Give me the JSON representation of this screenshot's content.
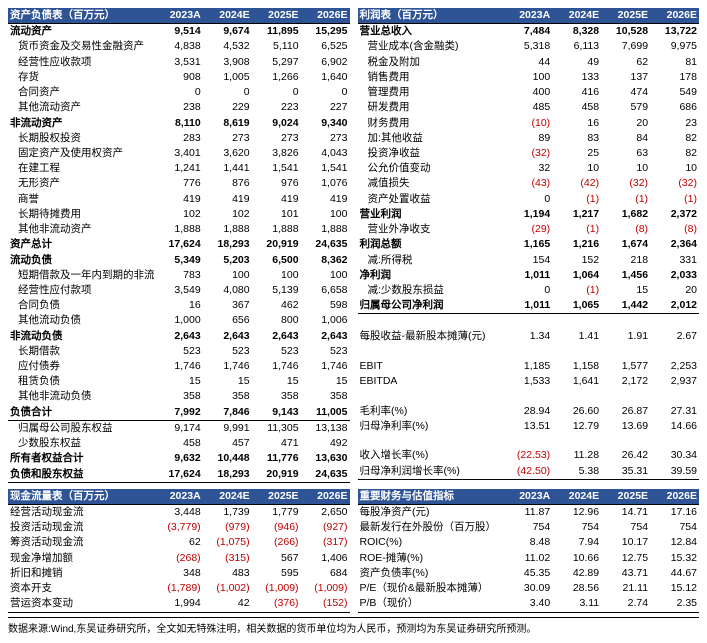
{
  "headers": [
    "2023A",
    "2024E",
    "2025E",
    "2026E"
  ],
  "balance": {
    "title": "资产负债表（百万元）",
    "rows": [
      {
        "l": "流动资产",
        "v": [
          "9,514",
          "9,674",
          "11,895",
          "15,295"
        ],
        "b": true
      },
      {
        "l": "货币资金及交易性金融资产",
        "v": [
          "4,838",
          "4,532",
          "5,110",
          "6,525"
        ],
        "i": true
      },
      {
        "l": "经营性应收款项",
        "v": [
          "3,531",
          "3,908",
          "5,297",
          "6,902"
        ],
        "i": true
      },
      {
        "l": "存货",
        "v": [
          "908",
          "1,005",
          "1,266",
          "1,640"
        ],
        "i": true
      },
      {
        "l": "合同资产",
        "v": [
          "0",
          "0",
          "0",
          "0"
        ],
        "i": true
      },
      {
        "l": "其他流动资产",
        "v": [
          "238",
          "229",
          "223",
          "227"
        ],
        "i": true
      },
      {
        "l": "非流动资产",
        "v": [
          "8,110",
          "8,619",
          "9,024",
          "9,340"
        ],
        "b": true
      },
      {
        "l": "长期股权投资",
        "v": [
          "283",
          "273",
          "273",
          "273"
        ],
        "i": true
      },
      {
        "l": "固定资产及使用权资产",
        "v": [
          "3,401",
          "3,620",
          "3,826",
          "4,043"
        ],
        "i": true
      },
      {
        "l": "在建工程",
        "v": [
          "1,241",
          "1,441",
          "1,541",
          "1,541"
        ],
        "i": true
      },
      {
        "l": "无形资产",
        "v": [
          "776",
          "876",
          "976",
          "1,076"
        ],
        "i": true
      },
      {
        "l": "商誉",
        "v": [
          "419",
          "419",
          "419",
          "419"
        ],
        "i": true
      },
      {
        "l": "长期待摊费用",
        "v": [
          "102",
          "102",
          "101",
          "100"
        ],
        "i": true
      },
      {
        "l": "其他非流动资产",
        "v": [
          "1,888",
          "1,888",
          "1,888",
          "1,888"
        ],
        "i": true
      },
      {
        "l": "资产总计",
        "v": [
          "17,624",
          "18,293",
          "20,919",
          "24,635"
        ],
        "b": true
      },
      {
        "l": "流动负债",
        "v": [
          "5,349",
          "5,203",
          "6,500",
          "8,362"
        ],
        "b": true
      },
      {
        "l": "短期借款及一年内到期的非流动负债",
        "v": [
          "783",
          "100",
          "100",
          "100"
        ],
        "i": true
      },
      {
        "l": "经营性应付款项",
        "v": [
          "3,549",
          "4,080",
          "5,139",
          "6,658"
        ],
        "i": true
      },
      {
        "l": "合同负债",
        "v": [
          "16",
          "367",
          "462",
          "598"
        ],
        "i": true
      },
      {
        "l": "其他流动负债",
        "v": [
          "1,000",
          "656",
          "800",
          "1,006"
        ],
        "i": true
      },
      {
        "l": "非流动负债",
        "v": [
          "2,643",
          "2,643",
          "2,643",
          "2,643"
        ],
        "b": true
      },
      {
        "l": "长期借款",
        "v": [
          "523",
          "523",
          "523",
          "523"
        ],
        "i": true
      },
      {
        "l": "应付债券",
        "v": [
          "1,746",
          "1,746",
          "1,746",
          "1,746"
        ],
        "i": true
      },
      {
        "l": "租赁负债",
        "v": [
          "15",
          "15",
          "15",
          "15"
        ],
        "i": true
      },
      {
        "l": "其他非流动负债",
        "v": [
          "358",
          "358",
          "358",
          "358"
        ],
        "i": true
      },
      {
        "l": "负债合计",
        "v": [
          "7,992",
          "7,846",
          "9,143",
          "11,005"
        ],
        "b": true,
        "div": true
      },
      {
        "l": "归属母公司股东权益",
        "v": [
          "9,174",
          "9,991",
          "11,305",
          "13,138"
        ],
        "i": true
      },
      {
        "l": "少数股东权益",
        "v": [
          "458",
          "457",
          "471",
          "492"
        ],
        "i": true
      },
      {
        "l": "所有者权益合计",
        "v": [
          "9,632",
          "10,448",
          "11,776",
          "13,630"
        ],
        "b": true
      },
      {
        "l": "负债和股东权益",
        "v": [
          "17,624",
          "18,293",
          "20,919",
          "24,635"
        ],
        "b": true
      }
    ]
  },
  "income": {
    "title": "利润表（百万元）",
    "rows": [
      {
        "l": "营业总收入",
        "v": [
          "7,484",
          "8,328",
          "10,528",
          "13,722"
        ],
        "b": true
      },
      {
        "l": "营业成本(含金融类)",
        "v": [
          "5,318",
          "6,113",
          "7,699",
          "9,975"
        ],
        "i": true
      },
      {
        "l": "税金及附加",
        "v": [
          "44",
          "49",
          "62",
          "81"
        ],
        "i": true
      },
      {
        "l": "销售费用",
        "v": [
          "100",
          "133",
          "137",
          "178"
        ],
        "i": true
      },
      {
        "l": "管理费用",
        "v": [
          "400",
          "416",
          "474",
          "549"
        ],
        "i": true
      },
      {
        "l": "研发费用",
        "v": [
          "485",
          "458",
          "579",
          "686"
        ],
        "i": true
      },
      {
        "l": "财务费用",
        "v": [
          "(10)",
          "16",
          "20",
          "23"
        ],
        "i": true,
        "negIdx": [
          0
        ]
      },
      {
        "l": "加:其他收益",
        "v": [
          "89",
          "83",
          "84",
          "82"
        ],
        "i": true
      },
      {
        "l": "投资净收益",
        "v": [
          "(32)",
          "25",
          "63",
          "82"
        ],
        "i": true,
        "negIdx": [
          0
        ]
      },
      {
        "l": "公允价值变动",
        "v": [
          "32",
          "10",
          "10",
          "10"
        ],
        "i": true
      },
      {
        "l": "减值损失",
        "v": [
          "(43)",
          "(42)",
          "(32)",
          "(32)"
        ],
        "i": true,
        "negIdx": [
          0,
          1,
          2,
          3
        ]
      },
      {
        "l": "资产处置收益",
        "v": [
          "0",
          "(1)",
          "(1)",
          "(1)"
        ],
        "i": true,
        "negIdx": [
          1,
          2,
          3
        ]
      },
      {
        "l": "营业利润",
        "v": [
          "1,194",
          "1,217",
          "1,682",
          "2,372"
        ],
        "b": true
      },
      {
        "l": "营业外净收支",
        "v": [
          "(29)",
          "(1)",
          "(8)",
          "(8)"
        ],
        "i": true,
        "negIdx": [
          0,
          1,
          2,
          3
        ]
      },
      {
        "l": "利润总额",
        "v": [
          "1,165",
          "1,216",
          "1,674",
          "2,364"
        ],
        "b": true
      },
      {
        "l": "减:所得税",
        "v": [
          "154",
          "152",
          "218",
          "331"
        ],
        "i": true
      },
      {
        "l": "净利润",
        "v": [
          "1,011",
          "1,064",
          "1,456",
          "2,033"
        ],
        "b": true
      },
      {
        "l": "减:少数股东损益",
        "v": [
          "0",
          "(1)",
          "15",
          "20"
        ],
        "i": true,
        "negIdx": [
          1
        ]
      },
      {
        "l": "归属母公司净利润",
        "v": [
          "1,011",
          "1,065",
          "1,442",
          "2,012"
        ],
        "b": true,
        "div": true
      },
      {
        "l": "",
        "v": [
          "",
          "",
          "",
          ""
        ]
      },
      {
        "l": "每股收益-最新股本摊薄(元)",
        "v": [
          "1.34",
          "1.41",
          "1.91",
          "2.67"
        ]
      },
      {
        "l": "",
        "v": [
          "",
          "",
          "",
          ""
        ]
      },
      {
        "l": "EBIT",
        "v": [
          "1,185",
          "1,158",
          "1,577",
          "2,253"
        ]
      },
      {
        "l": "EBITDA",
        "v": [
          "1,533",
          "1,641",
          "2,172",
          "2,937"
        ]
      },
      {
        "l": "",
        "v": [
          "",
          "",
          "",
          ""
        ]
      },
      {
        "l": "毛利率(%)",
        "v": [
          "28.94",
          "26.60",
          "26.87",
          "27.31"
        ]
      },
      {
        "l": "归母净利率(%)",
        "v": [
          "13.51",
          "12.79",
          "13.69",
          "14.66"
        ]
      },
      {
        "l": "",
        "v": [
          "",
          "",
          "",
          ""
        ]
      },
      {
        "l": "收入增长率(%)",
        "v": [
          "(22.53)",
          "11.28",
          "26.42",
          "30.34"
        ],
        "negIdx": [
          0
        ]
      },
      {
        "l": "归母净利润增长率(%)",
        "v": [
          "(42.50)",
          "5.38",
          "35.31",
          "39.59"
        ],
        "negIdx": [
          0
        ]
      }
    ]
  },
  "cashflow": {
    "title": "现金流量表（百万元）",
    "rows": [
      {
        "l": "经营活动现金流",
        "v": [
          "3,448",
          "1,739",
          "1,779",
          "2,650"
        ]
      },
      {
        "l": "投资活动现金流",
        "v": [
          "(3,779)",
          "(979)",
          "(946)",
          "(927)"
        ],
        "negIdx": [
          0,
          1,
          2,
          3
        ]
      },
      {
        "l": "筹资活动现金流",
        "v": [
          "62",
          "(1,075)",
          "(266)",
          "(317)"
        ],
        "negIdx": [
          1,
          2,
          3
        ]
      },
      {
        "l": "现金净增加额",
        "v": [
          "(268)",
          "(315)",
          "567",
          "1,406"
        ],
        "negIdx": [
          0,
          1
        ]
      },
      {
        "l": "折旧和摊销",
        "v": [
          "348",
          "483",
          "595",
          "684"
        ]
      },
      {
        "l": "资本开支",
        "v": [
          "(1,789)",
          "(1,002)",
          "(1,009)",
          "(1,009)"
        ],
        "negIdx": [
          0,
          1,
          2,
          3
        ]
      },
      {
        "l": "营运资本变动",
        "v": [
          "1,994",
          "42",
          "(376)",
          "(152)"
        ],
        "negIdx": [
          2,
          3
        ]
      }
    ]
  },
  "valuation": {
    "title": "重要财务与估值指标",
    "rows": [
      {
        "l": "每股净资产(元)",
        "v": [
          "11.87",
          "12.96",
          "14.71",
          "17.16"
        ]
      },
      {
        "l": "最新发行在外股份（百万股）",
        "v": [
          "754",
          "754",
          "754",
          "754"
        ]
      },
      {
        "l": "ROIC(%)",
        "v": [
          "8.48",
          "7.94",
          "10.17",
          "12.84"
        ]
      },
      {
        "l": "ROE-摊薄(%)",
        "v": [
          "11.02",
          "10.66",
          "12.75",
          "15.32"
        ]
      },
      {
        "l": "资产负债率(%)",
        "v": [
          "45.35",
          "42.89",
          "43.71",
          "44.67"
        ]
      },
      {
        "l": "P/E（现价&最新股本摊薄）",
        "v": [
          "30.09",
          "28.56",
          "21.11",
          "15.12"
        ]
      },
      {
        "l": "P/B（现价）",
        "v": [
          "3.40",
          "3.11",
          "2.74",
          "2.35"
        ]
      }
    ]
  },
  "footnote": "数据来源:Wind,东吴证券研究所，全文如无特殊注明，相关数据的货币单位均为人民币，预测均为东吴证券研究所预测。"
}
